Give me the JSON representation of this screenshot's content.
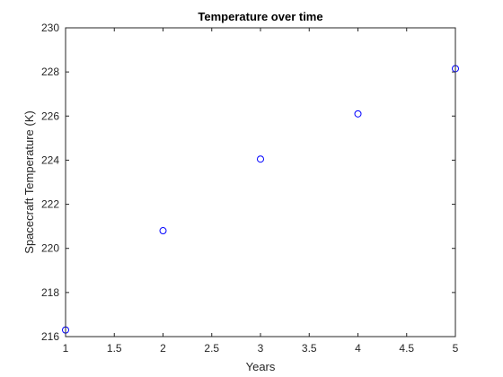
{
  "chart_data": {
    "type": "scatter",
    "title": "Temperature over time",
    "xlabel": "Years",
    "ylabel": "Spacecraft Temperature (K)",
    "xlim": [
      1,
      5
    ],
    "ylim": [
      216,
      230
    ],
    "x_ticks": [
      "1",
      "1.5",
      "2",
      "2.5",
      "3",
      "3.5",
      "4",
      "4.5",
      "5"
    ],
    "y_ticks": [
      "216",
      "218",
      "220",
      "222",
      "224",
      "226",
      "228",
      "230"
    ],
    "grid": false,
    "marker": "circle-open",
    "marker_color": "#0000ff",
    "axis_color": "#262626",
    "series": [
      {
        "x": [
          1,
          2,
          3,
          4,
          5
        ],
        "y": [
          216.3,
          220.8,
          224.05,
          226.1,
          228.15
        ]
      }
    ]
  }
}
